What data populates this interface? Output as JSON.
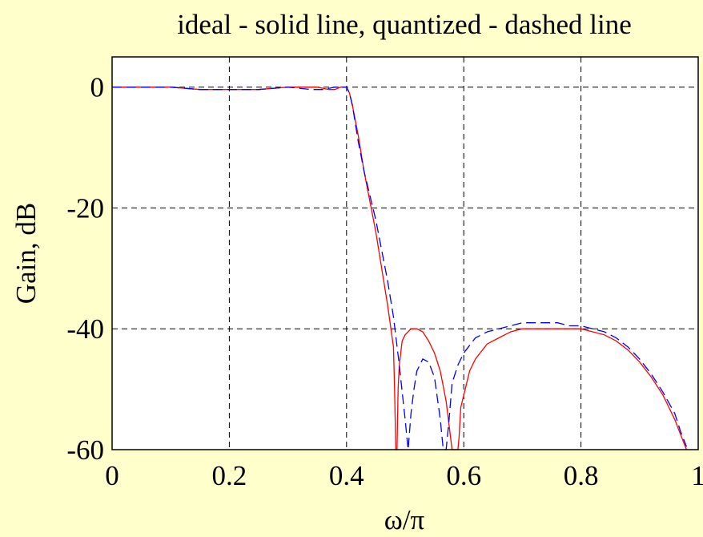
{
  "chart_data": {
    "type": "line",
    "title": "ideal - solid line, quantized - dashed line",
    "xlabel": "ω/π",
    "ylabel": "Gain, dB",
    "xlim": [
      0,
      1
    ],
    "ylim": [
      -60,
      5
    ],
    "xticks": [
      0,
      0.2,
      0.4,
      0.6,
      0.8,
      1
    ],
    "xtick_labels": [
      "0",
      "0.2",
      "0.4",
      "0.6",
      "0.8",
      "1"
    ],
    "yticks": [
      0,
      -20,
      -40,
      -60
    ],
    "ytick_labels": [
      "0",
      "-20",
      "-40",
      "-60"
    ],
    "grid": true,
    "colors": {
      "ideal": "#ff0000",
      "quantized": "#0000ff",
      "background": "#ffffcc",
      "plot_area": "#ffffff"
    },
    "series": [
      {
        "key": "ideal",
        "style": "solid",
        "x": [
          0,
          0.1,
          0.15,
          0.2,
          0.25,
          0.3,
          0.35,
          0.37,
          0.38,
          0.39,
          0.395,
          0.4,
          0.405,
          0.41,
          0.42,
          0.43,
          0.44,
          0.45,
          0.46,
          0.47,
          0.48,
          0.482,
          0.484,
          0.486,
          0.488,
          0.49,
          0.495,
          0.5,
          0.51,
          0.52,
          0.53,
          0.54,
          0.55,
          0.56,
          0.57,
          0.58,
          0.585,
          0.588,
          0.59,
          0.592,
          0.595,
          0.6,
          0.61,
          0.62,
          0.64,
          0.66,
          0.68,
          0.7,
          0.72,
          0.74,
          0.76,
          0.78,
          0.8,
          0.82,
          0.84,
          0.86,
          0.88,
          0.9,
          0.92,
          0.94,
          0.96,
          0.97,
          0.98
        ],
        "y": [
          0,
          0,
          -0.4,
          -0.4,
          -0.4,
          0,
          0,
          -0.4,
          -0.4,
          0,
          0,
          0,
          -1,
          -3,
          -8,
          -14,
          -19,
          -24,
          -30,
          -36,
          -43,
          -50,
          -60,
          -60,
          -50,
          -46,
          -42,
          -41,
          -40,
          -40,
          -40.5,
          -42,
          -44,
          -47,
          -52,
          -60,
          -60,
          -60,
          -60,
          -58,
          -53,
          -51,
          -47,
          -45,
          -42.5,
          -41.5,
          -40.5,
          -40,
          -40,
          -40,
          -40,
          -40,
          -40,
          -40.5,
          -41,
          -42,
          -43.5,
          -45.5,
          -48,
          -51,
          -55,
          -57.5,
          -60
        ]
      },
      {
        "key": "quantized",
        "style": "dashed",
        "x": [
          0,
          0.1,
          0.15,
          0.2,
          0.25,
          0.3,
          0.34,
          0.36,
          0.38,
          0.39,
          0.4,
          0.405,
          0.41,
          0.42,
          0.43,
          0.44,
          0.45,
          0.46,
          0.47,
          0.48,
          0.49,
          0.5,
          0.505,
          0.51,
          0.515,
          0.52,
          0.53,
          0.54,
          0.55,
          0.56,
          0.565,
          0.57,
          0.575,
          0.58,
          0.59,
          0.6,
          0.62,
          0.64,
          0.66,
          0.68,
          0.7,
          0.72,
          0.74,
          0.76,
          0.78,
          0.8,
          0.82,
          0.84,
          0.86,
          0.88,
          0.9,
          0.92,
          0.94,
          0.96,
          0.97,
          0.98
        ],
        "y": [
          0,
          0,
          -0.4,
          -0.4,
          -0.4,
          0,
          -0.4,
          -0.4,
          0,
          0,
          0,
          -1,
          -3,
          -9,
          -14,
          -18,
          -22,
          -27,
          -32,
          -38,
          -46,
          -55,
          -60,
          -54,
          -50,
          -47,
          -45,
          -45.5,
          -48,
          -55,
          -60,
          -60,
          -55,
          -49,
          -46,
          -44,
          -41.5,
          -40.5,
          -40,
          -39.5,
          -39,
          -39,
          -39,
          -39,
          -39.5,
          -39.5,
          -40,
          -40.5,
          -41.5,
          -43,
          -45,
          -47.5,
          -50.5,
          -54,
          -57,
          -59.5
        ]
      }
    ]
  }
}
